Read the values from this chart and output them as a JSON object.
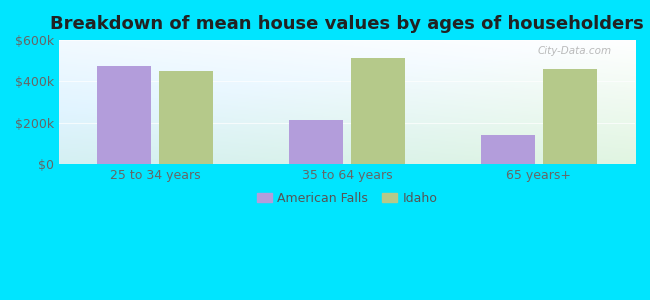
{
  "title": "Breakdown of mean house values by ages of householders",
  "categories": [
    "25 to 34 years",
    "35 to 64 years",
    "65 years+"
  ],
  "american_falls": [
    475000,
    215000,
    140000
  ],
  "idaho": [
    450000,
    515000,
    460000
  ],
  "ylim": [
    0,
    600000
  ],
  "yticks": [
    0,
    200000,
    400000,
    600000
  ],
  "ytick_labels": [
    "$0",
    "$200k",
    "$400k",
    "$600k"
  ],
  "bar_color_af": "#b39ddb",
  "bar_color_idaho": "#b5c98a",
  "background_color": "#00e5ff",
  "legend_af": "American Falls",
  "legend_idaho": "Idaho",
  "title_fontsize": 13,
  "tick_fontsize": 9,
  "legend_fontsize": 9,
  "bar_width": 0.28,
  "bar_gap": 0.04
}
